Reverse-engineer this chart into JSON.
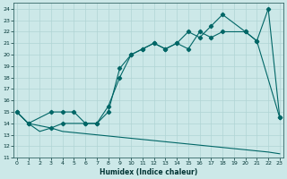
{
  "xlabel": "Humidex (Indice chaleur)",
  "bg_color": "#cce8e8",
  "grid_color": "#b0d4d4",
  "line_color": "#006666",
  "xlim": [
    -0.3,
    23.3
  ],
  "ylim": [
    11,
    24.5
  ],
  "xticks": [
    0,
    1,
    2,
    3,
    4,
    5,
    6,
    7,
    8,
    9,
    10,
    11,
    12,
    13,
    14,
    15,
    16,
    17,
    18,
    19,
    20,
    21,
    22,
    23
  ],
  "yticks": [
    11,
    12,
    13,
    14,
    15,
    16,
    17,
    18,
    19,
    20,
    21,
    22,
    23,
    24
  ],
  "curve1_x": [
    0,
    1,
    3,
    4,
    5,
    6,
    7,
    8,
    9,
    10,
    11,
    12,
    13,
    14,
    15,
    16,
    17,
    18,
    20,
    21,
    22,
    23
  ],
  "curve1_y": [
    15,
    14,
    15,
    15,
    15,
    14,
    14,
    15.5,
    18,
    20,
    20.5,
    21,
    20.5,
    21,
    20.5,
    22,
    21.5,
    22,
    22,
    21.2,
    24,
    14.5
  ],
  "curve2_x": [
    0,
    1,
    3,
    4,
    6,
    7,
    8,
    9,
    10,
    11,
    12,
    13,
    14,
    15,
    16,
    17,
    18,
    20,
    21,
    23
  ],
  "curve2_y": [
    15,
    14,
    13.6,
    14,
    14,
    14,
    15,
    18.8,
    20,
    20.5,
    21,
    20.5,
    21,
    22,
    21.5,
    22.5,
    23.5,
    22,
    21.2,
    14.5
  ],
  "curve3_x": [
    0,
    1,
    2,
    3,
    4,
    5,
    6,
    7,
    8,
    9,
    10,
    11,
    12,
    13,
    14,
    15,
    16,
    17,
    18,
    19,
    20,
    21,
    22,
    23
  ],
  "curve3_y": [
    15,
    14,
    13.3,
    13.6,
    13.3,
    13.2,
    13.1,
    13.0,
    12.9,
    12.8,
    12.7,
    12.6,
    12.5,
    12.4,
    12.3,
    12.2,
    12.1,
    12.0,
    11.9,
    11.8,
    11.7,
    11.6,
    11.5,
    11.35
  ]
}
